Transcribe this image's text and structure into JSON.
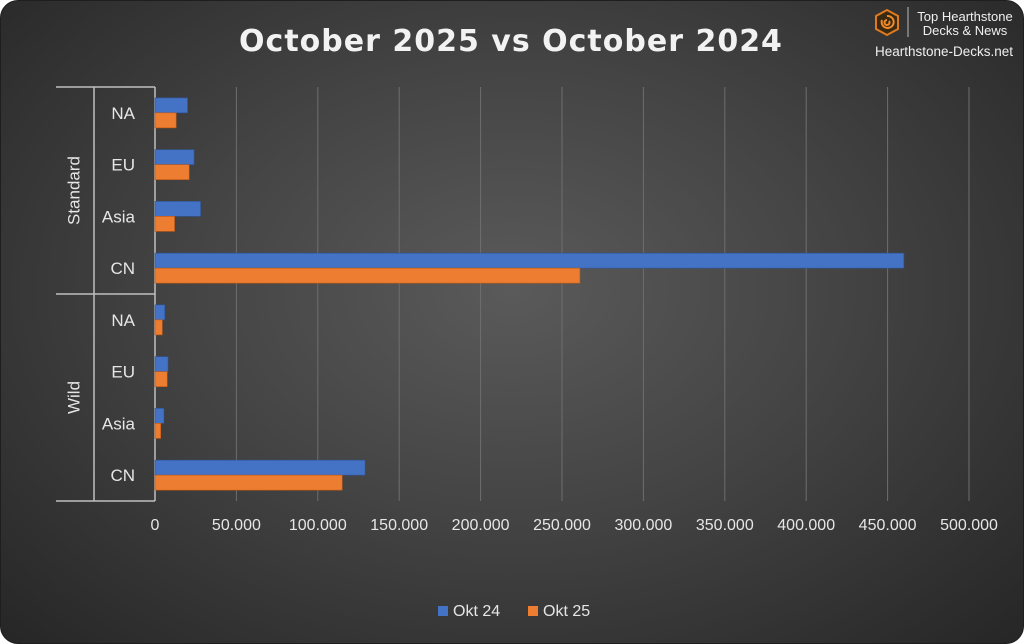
{
  "chart_data": {
    "type": "bar",
    "orientation": "horizontal",
    "title": "October 2025 vs October 2024",
    "xlim": [
      0,
      500000
    ],
    "xticks": [
      0,
      50000,
      100000,
      150000,
      200000,
      250000,
      300000,
      350000,
      400000,
      450000,
      500000
    ],
    "xtick_labels": [
      "0",
      "50.000",
      "100.000",
      "150.000",
      "200.000",
      "250.000",
      "300.000",
      "350.000",
      "400.000",
      "450.000",
      "500.000"
    ],
    "grid": true,
    "legend_position": "bottom",
    "groups": [
      {
        "name": "Standard",
        "categories": [
          "NA",
          "EU",
          "Asia",
          "CN"
        ]
      },
      {
        "name": "Wild",
        "categories": [
          "NA",
          "EU",
          "Asia",
          "CN"
        ]
      }
    ],
    "series": [
      {
        "name": "Okt 24",
        "color": "#4472C4",
        "values": [
          20000,
          24000,
          28000,
          460000,
          6000,
          8000,
          5500,
          129000
        ]
      },
      {
        "name": "Okt 25",
        "color": "#ED7D31",
        "values": [
          13000,
          21000,
          12000,
          261000,
          4500,
          7500,
          3500,
          115000
        ]
      }
    ]
  },
  "branding": {
    "line1": "Top Hearthstone",
    "line2": "Decks & News",
    "site": "Hearthstone-Decks.net",
    "logo_icon": "hearthstone-logo-icon"
  }
}
